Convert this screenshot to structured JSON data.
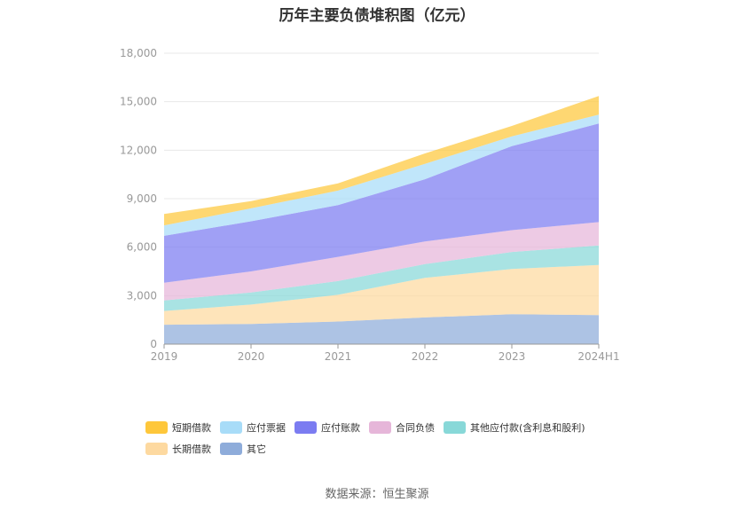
{
  "title": "历年主要负债堆积图（亿元）",
  "source": "数据来源：恒生聚源",
  "chart_data": {
    "type": "area",
    "stacked": true,
    "categories": [
      "2019",
      "2020",
      "2021",
      "2022",
      "2023",
      "2024H1"
    ],
    "ylim": [
      0,
      18000
    ],
    "yticks": [
      0,
      3000,
      6000,
      9000,
      12000,
      15000,
      18000
    ],
    "ytick_labels": [
      "0",
      "3,000",
      "6,000",
      "9,000",
      "12,000",
      "15,000",
      "18,000"
    ],
    "grid": true,
    "legend_position": "bottom",
    "series": [
      {
        "name": "其它",
        "color": "#8eacda",
        "values": [
          1200,
          1250,
          1400,
          1650,
          1850,
          1800
        ]
      },
      {
        "name": "长期借款",
        "color": "#fdd9a0",
        "values": [
          850,
          1200,
          1650,
          2450,
          2800,
          3100
        ]
      },
      {
        "name": "其他应付款(含利息和股利)",
        "color": "#88d8d8",
        "values": [
          650,
          750,
          850,
          850,
          1050,
          1200
        ]
      },
      {
        "name": "合同负债",
        "color": "#e6b6d9",
        "values": [
          1100,
          1300,
          1500,
          1400,
          1350,
          1450
        ]
      },
      {
        "name": "应付账款",
        "color": "#7b7cf1",
        "values": [
          2900,
          3100,
          3200,
          3850,
          5200,
          6100
        ]
      },
      {
        "name": "应付票据",
        "color": "#a8dcf8",
        "values": [
          650,
          800,
          900,
          950,
          600,
          550
        ]
      },
      {
        "name": "短期借款",
        "color": "#fec73b",
        "values": [
          700,
          450,
          450,
          650,
          650,
          1150
        ]
      }
    ],
    "legend_order": [
      "短期借款",
      "应付票据",
      "应付账款",
      "合同负债",
      "其他应付款(含利息和股利)",
      "长期借款",
      "其它"
    ]
  }
}
